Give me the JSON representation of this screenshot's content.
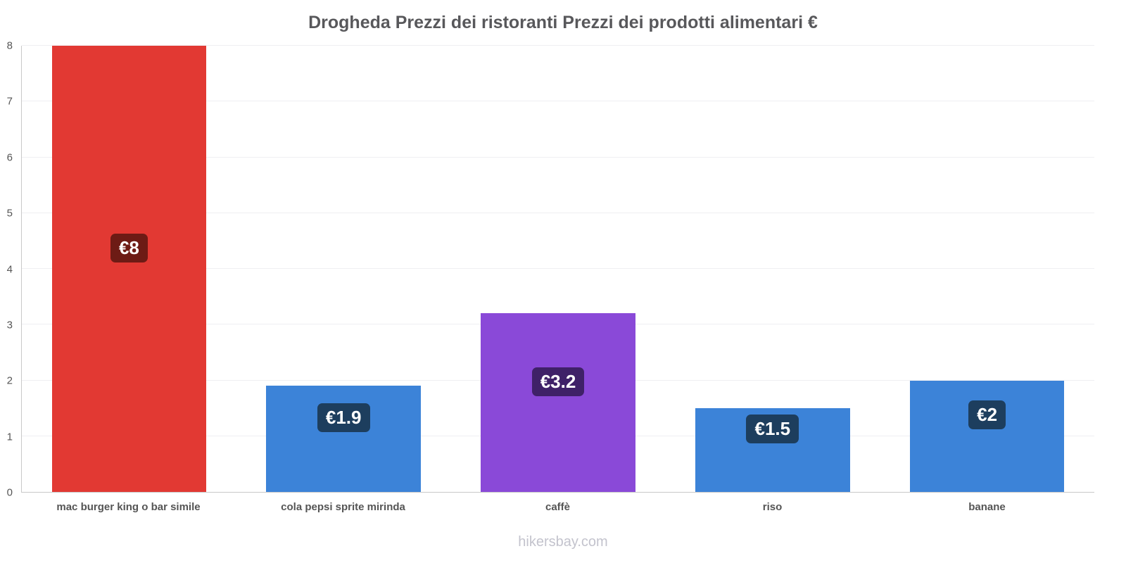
{
  "title": "Drogheda Prezzi dei ristoranti Prezzi dei prodotti alimentari €",
  "footer": "hikersbay.com",
  "chart_data": {
    "type": "bar",
    "title": "Drogheda Prezzi dei ristoranti Prezzi dei prodotti alimentari €",
    "categories": [
      "mac burger king o bar simile",
      "cola pepsi sprite mirinda",
      "caffè",
      "riso",
      "banane"
    ],
    "values": [
      8,
      1.9,
      3.2,
      1.5,
      2
    ],
    "value_labels": [
      "€8",
      "€1.9",
      "€3.2",
      "€1.5",
      "€2"
    ],
    "bar_colors": [
      "#e23933",
      "#3c83d8",
      "#8a49d8",
      "#3c83d8",
      "#3c83d8"
    ],
    "label_bg_colors": [
      "#6d1b15",
      "#1d3e5e",
      "#3f2168",
      "#1d3e5e",
      "#1d3e5e"
    ],
    "xlabel": "",
    "ylabel": "",
    "ylim": [
      0,
      8
    ],
    "yticks": [
      0,
      1,
      2,
      3,
      4,
      5,
      6,
      7,
      8
    ],
    "grid": true,
    "legend": false,
    "watermark": "hikersbay.com"
  }
}
